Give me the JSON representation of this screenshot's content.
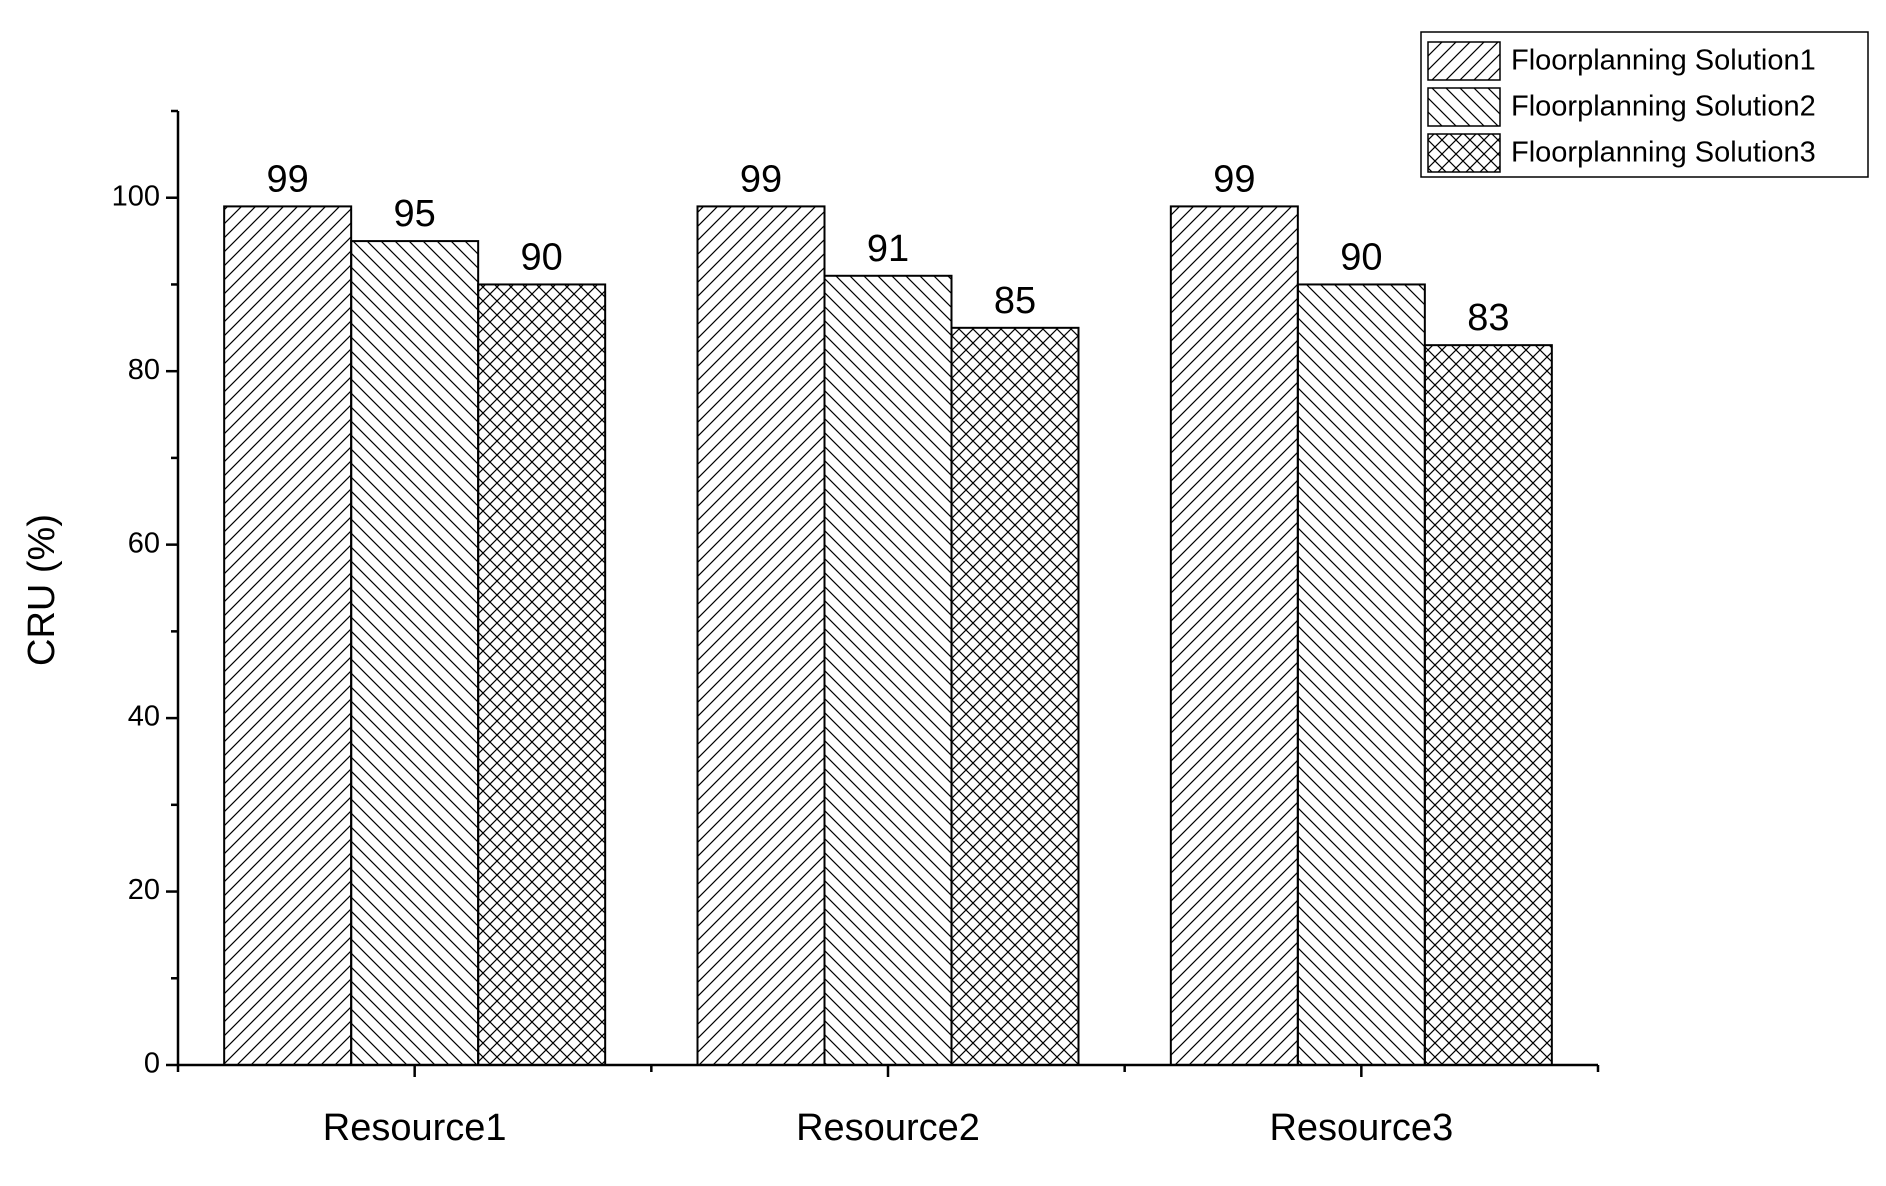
{
  "chart_data": {
    "type": "bar",
    "y_label": "CRU (%)",
    "categories": [
      "Resource1",
      "Resource2",
      "Resource3"
    ],
    "series": [
      {
        "name": "Floorplanning Solution1",
        "color": "#000000",
        "hatch": "/",
        "values": [
          99,
          99,
          99
        ]
      },
      {
        "name": "Floorplanning Solution2",
        "color": "#000000",
        "hatch": "\\",
        "values": [
          95,
          91,
          90
        ]
      },
      {
        "name": "Floorplanning Solution3",
        "color": "#000000",
        "hatch": "x",
        "values": [
          90,
          85,
          83
        ]
      }
    ],
    "ylim": [
      0,
      110
    ],
    "yticks": [
      0,
      20,
      40,
      60,
      80,
      100
    ],
    "yminorticks": [
      10,
      30,
      50,
      70,
      90,
      110
    ],
    "grid": false,
    "legend": "top-right"
  }
}
